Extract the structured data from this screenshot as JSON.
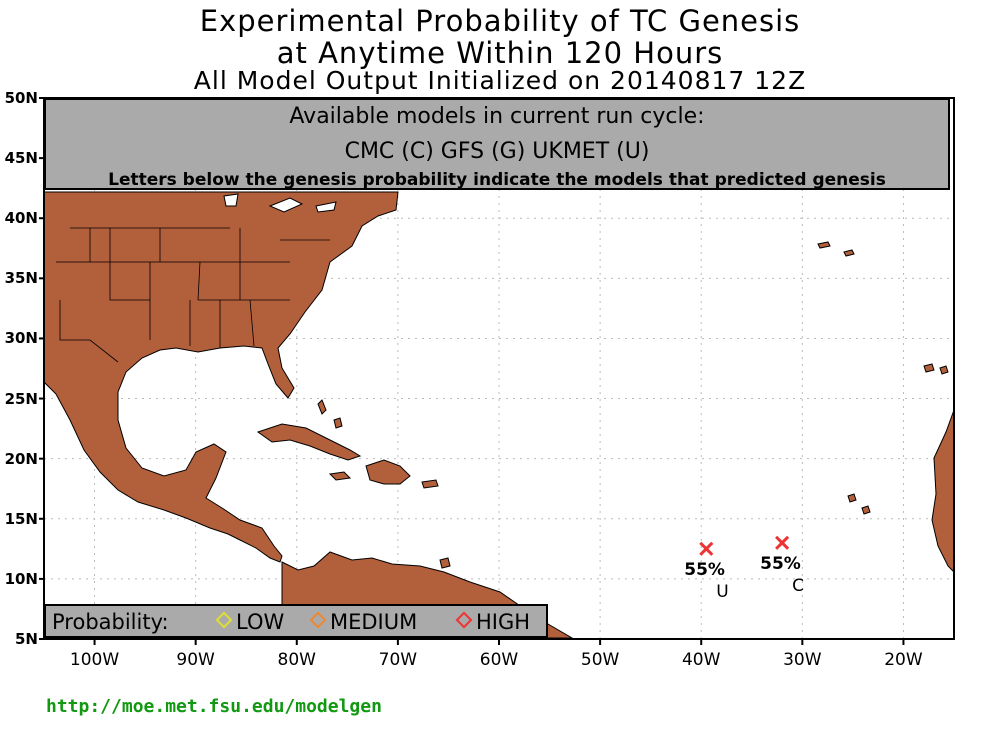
{
  "title": {
    "line1": "Experimental Probability of TC Genesis",
    "line2": "at Anytime Within 120 Hours",
    "line3": "All Model Output Initialized on 20140817 12Z"
  },
  "header": {
    "line1": "Available models in current run cycle:",
    "line2": "CMC (C) GFS (G)  UKMET (U)",
    "line3": "Letters below the genesis probability indicate the models that predicted genesis"
  },
  "axes": {
    "lat_labels": [
      "50N",
      "45N",
      "40N",
      "35N",
      "30N",
      "25N",
      "20N",
      "15N",
      "10N",
      "5N"
    ],
    "lon_labels": [
      "100W",
      "90W",
      "80W",
      "70W",
      "60W",
      "50W",
      "40W",
      "30W",
      "20W"
    ],
    "lon_range": [
      -105,
      -15
    ],
    "lat_range": [
      5,
      50
    ]
  },
  "legend": {
    "title": "Probability:",
    "low": "LOW",
    "medium": "MEDIUM",
    "high": "HIGH",
    "colors": {
      "low": "#dddd33",
      "medium": "#ee8833",
      "high": "#ee3333"
    }
  },
  "colors": {
    "land": "#b25f3c",
    "grid": "#bbbbbb",
    "marker": "#ee3333"
  },
  "markers": [
    {
      "lon": -39.5,
      "lat": 12.5,
      "probability": "55%",
      "models": "U",
      "category": "high"
    },
    {
      "lon": -32.0,
      "lat": 13.0,
      "probability": "55%",
      "models": "C",
      "category": "high"
    }
  ],
  "url": "http://moe.met.fsu.edu/modelgen"
}
